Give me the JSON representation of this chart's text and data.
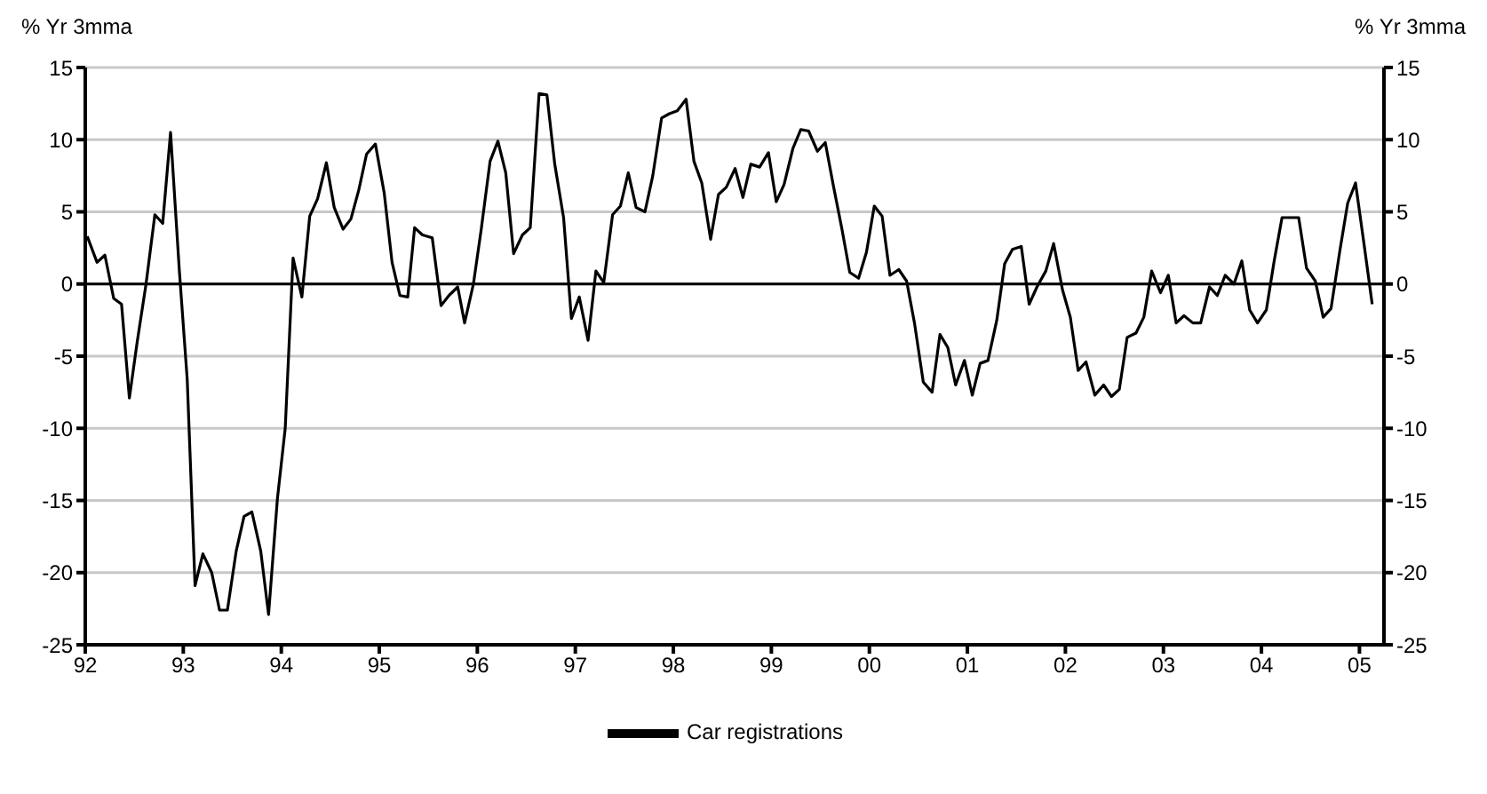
{
  "chart_data": {
    "type": "line",
    "ylabel": "% Yr 3mma",
    "y2label": "% Yr 3mma",
    "x": [
      1992.02,
      1992.12,
      1992.2,
      1992.29,
      1992.37,
      1992.45,
      1992.53,
      1992.62,
      1992.71,
      1992.79,
      1992.87,
      1992.96,
      1993.04,
      1993.12,
      1993.2,
      1993.29,
      1993.37,
      1993.45,
      1993.54,
      1993.62,
      1993.7,
      1993.79,
      1993.87,
      1993.96,
      1994.04,
      1994.12,
      1994.21,
      1994.29,
      1994.37,
      1994.46,
      1994.54,
      1994.63,
      1994.71,
      1994.79,
      1994.87,
      1994.96,
      1995.05,
      1995.13,
      1995.21,
      1995.29,
      1995.36,
      1995.44,
      1995.54,
      1995.63,
      1995.71,
      1995.8,
      1995.87,
      1995.96,
      1996.04,
      1996.13,
      1996.21,
      1996.29,
      1996.37,
      1996.46,
      1996.54,
      1996.63,
      1996.71,
      1996.79,
      1996.88,
      1996.96,
      1997.04,
      1997.13,
      1997.21,
      1997.29,
      1997.38,
      1997.46,
      1997.54,
      1997.62,
      1997.71,
      1997.79,
      1997.88,
      1997.96,
      1998.04,
      1998.13,
      1998.21,
      1998.29,
      1998.38,
      1998.46,
      1998.54,
      1998.63,
      1998.71,
      1998.79,
      1998.88,
      1998.97,
      1999.05,
      1999.13,
      1999.22,
      1999.3,
      1999.38,
      1999.47,
      1999.55,
      1999.63,
      1999.72,
      1999.8,
      1999.89,
      1999.97,
      2000.05,
      2000.13,
      2000.21,
      2000.3,
      2000.38,
      2000.46,
      2000.55,
      2000.64,
      2000.72,
      2000.8,
      2000.88,
      2000.97,
      2001.05,
      2001.13,
      2001.21,
      2001.3,
      2001.38,
      2001.46,
      2001.55,
      2001.63,
      2001.71,
      2001.8,
      2001.88,
      2001.97,
      2002.05,
      2002.13,
      2002.21,
      2002.3,
      2002.39,
      2002.47,
      2002.55,
      2002.63,
      2002.72,
      2002.8,
      2002.88,
      2002.97,
      2003.05,
      2003.13,
      2003.21,
      2003.3,
      2003.38,
      2003.47,
      2003.55,
      2003.63,
      2003.72,
      2003.8,
      2003.88,
      2003.96,
      2004.05,
      2004.13,
      2004.21,
      2004.3,
      2004.38,
      2004.46,
      2004.55,
      2004.63,
      2004.71,
      2004.8,
      2004.88,
      2004.96,
      2005.05,
      2005.13
    ],
    "series": [
      {
        "name": "Car registrations",
        "color": "#000000",
        "values": [
          3.3,
          1.5,
          2.0,
          -1.0,
          -1.4,
          -7.9,
          -4.0,
          0.0,
          4.8,
          4.2,
          10.5,
          0.9,
          -6.6,
          -20.9,
          -18.7,
          -20.0,
          -22.6,
          -22.6,
          -18.5,
          -16.1,
          -15.8,
          -18.5,
          -22.9,
          -14.9,
          -10.0,
          1.8,
          -0.9,
          4.7,
          5.9,
          8.4,
          5.3,
          3.8,
          4.5,
          6.5,
          9.0,
          9.7,
          6.3,
          1.5,
          -0.8,
          -0.9,
          3.9,
          3.4,
          3.2,
          -1.5,
          -0.8,
          -0.2,
          -2.7,
          0.0,
          3.8,
          8.5,
          9.9,
          7.7,
          2.1,
          3.4,
          3.9,
          13.2,
          13.1,
          8.3,
          4.6,
          -2.4,
          -0.9,
          -3.9,
          0.9,
          0.1,
          4.8,
          5.4,
          7.7,
          5.3,
          5.0,
          7.5,
          11.5,
          11.8,
          12.0,
          12.8,
          8.5,
          7.0,
          3.1,
          6.2,
          6.7,
          8.0,
          6.0,
          8.3,
          8.1,
          9.1,
          5.7,
          6.9,
          9.4,
          10.7,
          10.6,
          9.2,
          9.8,
          6.9,
          3.8,
          0.8,
          0.4,
          2.2,
          5.4,
          4.7,
          0.6,
          1.0,
          0.2,
          -2.7,
          -6.8,
          -7.5,
          -3.5,
          -4.4,
          -7.0,
          -5.3,
          -7.7,
          -5.5,
          -5.3,
          -2.5,
          1.4,
          2.4,
          2.6,
          -1.4,
          -0.2,
          0.9,
          2.8,
          -0.4,
          -2.3,
          -6.0,
          -5.4,
          -7.7,
          -7.0,
          -7.8,
          -7.3,
          -3.7,
          -3.4,
          -2.3,
          0.9,
          -0.6,
          0.6,
          -2.7,
          -2.2,
          -2.7,
          -2.7,
          -0.2,
          -0.8,
          0.6,
          0.0,
          1.6,
          -1.8,
          -2.7,
          -1.8,
          1.6,
          4.6,
          4.6,
          4.6,
          1.1,
          0.2,
          -2.3,
          -1.7,
          2.3,
          5.6,
          7.0,
          2.6,
          -1.4
        ]
      }
    ],
    "xlim": [
      1992,
      2005.25
    ],
    "xticks": [
      {
        "value": 1992,
        "label": "92"
      },
      {
        "value": 1993,
        "label": "93"
      },
      {
        "value": 1994,
        "label": "94"
      },
      {
        "value": 1995,
        "label": "95"
      },
      {
        "value": 1996,
        "label": "96"
      },
      {
        "value": 1997,
        "label": "97"
      },
      {
        "value": 1998,
        "label": "98"
      },
      {
        "value": 1999,
        "label": "99"
      },
      {
        "value": 2000,
        "label": "00"
      },
      {
        "value": 2001,
        "label": "01"
      },
      {
        "value": 2002,
        "label": "02"
      },
      {
        "value": 2003,
        "label": "03"
      },
      {
        "value": 2004,
        "label": "04"
      },
      {
        "value": 2005,
        "label": "05"
      }
    ],
    "ylim": [
      -25,
      15
    ],
    "yticks": [
      -25,
      -20,
      -15,
      -10,
      -5,
      0,
      5,
      10,
      15
    ],
    "y2lim": [
      -25,
      15
    ],
    "y2ticks": [
      -25,
      -20,
      -15,
      -10,
      -5,
      0,
      5,
      10,
      15
    ],
    "ref_lines": [
      {
        "axis": "y",
        "value": 0,
        "color": "#000000"
      }
    ],
    "grid": "y",
    "legend": "bottom",
    "marker": "none",
    "line_style": "solid"
  }
}
